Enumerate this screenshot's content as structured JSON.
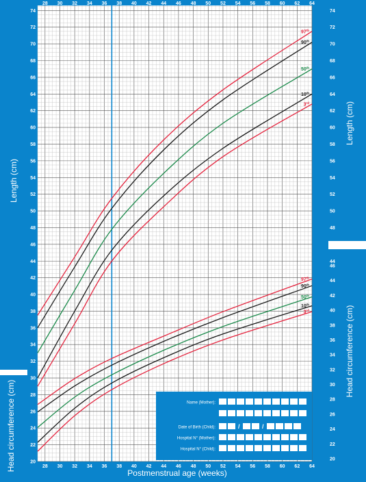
{
  "colors": {
    "blue": "#0a84cc",
    "red": "#e5233d",
    "black": "#1a1a1a",
    "green": "#1a8a4a",
    "grid_minor": "#b8b8b8",
    "grid_major": "#555555"
  },
  "chart_data": [
    {
      "type": "line",
      "ylabel": "Length (cm)",
      "xlabel": "Postmenstrual age (weeks)",
      "xlim": [
        27,
        64
      ],
      "ylim": [
        20,
        74
      ],
      "x_ticks": [
        28,
        30,
        32,
        34,
        36,
        38,
        40,
        42,
        44,
        46,
        48,
        50,
        52,
        54,
        56,
        58,
        60,
        62,
        64
      ],
      "y_ticks_left": [
        20,
        22,
        24,
        26,
        28,
        30,
        32,
        34,
        36,
        38,
        40,
        42,
        44,
        46,
        48,
        50,
        52,
        54,
        56,
        58,
        60,
        62,
        64,
        66,
        68,
        70,
        72,
        74
      ],
      "y_ticks_right": [
        44,
        46,
        48,
        50,
        52,
        54,
        56,
        58,
        60,
        62,
        64,
        66,
        68,
        70,
        72,
        74
      ],
      "marker_x": 37,
      "series": [
        {
          "name": "97th",
          "color": "#e5233d",
          "x": [
            27,
            32,
            37,
            44,
            52,
            64
          ],
          "y": [
            37.5,
            44.5,
            51.5,
            58.5,
            64.5,
            71.5
          ]
        },
        {
          "name": "90th",
          "color": "#1a1a1a",
          "x": [
            27,
            32,
            37,
            44,
            52,
            64
          ],
          "y": [
            36.0,
            43.3,
            50.3,
            57.3,
            63.3,
            70.2
          ]
        },
        {
          "name": "50th",
          "color": "#1a8a4a",
          "x": [
            27,
            32,
            37,
            44,
            52,
            64
          ],
          "y": [
            33.0,
            40.5,
            47.8,
            54.5,
            60.5,
            67.0
          ]
        },
        {
          "name": "10th",
          "color": "#1a1a1a",
          "x": [
            27,
            32,
            37,
            44,
            52,
            64
          ],
          "y": [
            30.0,
            38.0,
            45.3,
            51.8,
            57.5,
            64.0
          ]
        },
        {
          "name": "3rd",
          "color": "#e5233d",
          "x": [
            27,
            32,
            37,
            44,
            52,
            64
          ],
          "y": [
            29.0,
            36.5,
            44.0,
            50.5,
            56.5,
            62.8
          ]
        }
      ]
    },
    {
      "type": "line",
      "ylabel": "Head circumference (cm)",
      "xlabel": "Postmenstrual age (weeks)",
      "xlim": [
        27,
        64
      ],
      "ylim": [
        20,
        46
      ],
      "y_ticks_left": [
        20,
        22,
        24,
        26,
        28,
        30
      ],
      "y_ticks_right": [
        20,
        22,
        24,
        26,
        28,
        30,
        32,
        34,
        36,
        38,
        40,
        42,
        44,
        46
      ],
      "series": [
        {
          "name": "97th",
          "color": "#e5233d",
          "x": [
            27,
            32,
            37,
            44,
            52,
            64
          ],
          "y": [
            27.3,
            30.8,
            33.5,
            36.5,
            39.8,
            44.2
          ]
        },
        {
          "name": "90th",
          "color": "#1a1a1a",
          "x": [
            27,
            32,
            37,
            44,
            52,
            64
          ],
          "y": [
            26.3,
            29.8,
            32.6,
            35.8,
            39.0,
            43.3
          ]
        },
        {
          "name": "50th",
          "color": "#1a8a4a",
          "x": [
            27,
            32,
            37,
            44,
            52,
            64
          ],
          "y": [
            24.2,
            28.3,
            31.3,
            34.6,
            37.8,
            41.8
          ]
        },
        {
          "name": "10th",
          "color": "#1a1a1a",
          "x": [
            27,
            32,
            37,
            44,
            52,
            64
          ],
          "y": [
            22.2,
            26.8,
            30.2,
            33.6,
            36.8,
            40.6
          ]
        },
        {
          "name": "3rd",
          "color": "#e5233d",
          "x": [
            27,
            32,
            37,
            44,
            52,
            64
          ],
          "y": [
            21.0,
            25.8,
            29.3,
            32.8,
            36.0,
            39.8
          ]
        }
      ]
    }
  ],
  "labels": {
    "length_left": "Length (cm)",
    "length_right": "Length (cm)",
    "head_left": "Head circumference (cm)",
    "head_right": "Head circumference (cm)",
    "x_axis": "Postmenstrual age (weeks)",
    "pct": {
      "p97": "97",
      "p97_sup": "th",
      "p90": "90",
      "p90_sup": "th",
      "p50": "50",
      "p50_sup": "th",
      "p10": "10",
      "p10_sup": "th",
      "p3": "3",
      "p3_sup": "rd"
    }
  },
  "form": {
    "name_mother": "Name (Mother):",
    "dob_child": "Date of Birth (Child):",
    "hospital_mother": "Hospital N° (Mother):",
    "hospital_child": "Hospital N° (Child):",
    "slash": "/"
  }
}
